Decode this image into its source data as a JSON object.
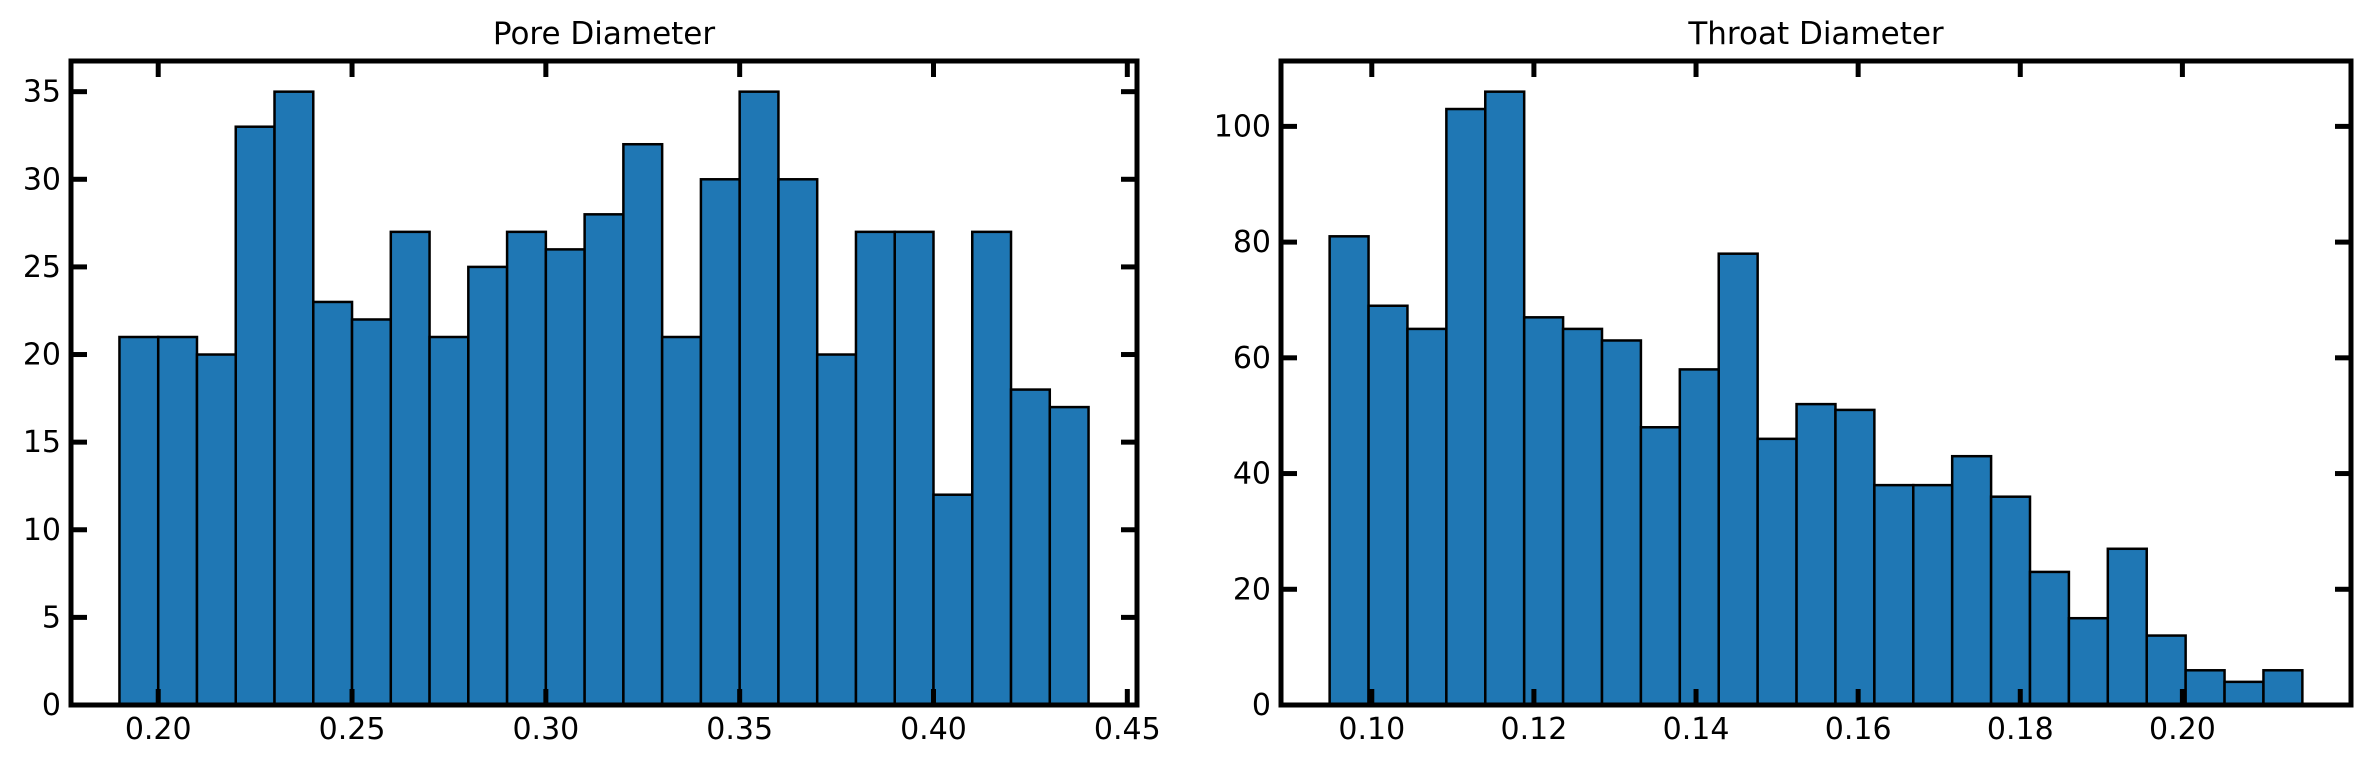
{
  "chart_data": [
    {
      "type": "bar",
      "title": "Pore Diameter",
      "xlabel": "",
      "ylabel": "",
      "bin_edges": [
        0.19,
        0.2,
        0.21,
        0.22,
        0.23,
        0.24,
        0.25,
        0.26,
        0.27,
        0.28,
        0.29,
        0.3,
        0.31,
        0.32,
        0.33,
        0.34,
        0.35,
        0.36,
        0.37,
        0.38,
        0.39,
        0.4,
        0.41,
        0.42,
        0.43,
        0.44
      ],
      "values": [
        21,
        21,
        20,
        33,
        35,
        23,
        22,
        27,
        21,
        25,
        27,
        26,
        28,
        32,
        21,
        30,
        35,
        30,
        20,
        27,
        27,
        12,
        27,
        18,
        17
      ],
      "xlim": [
        0.1775,
        0.4525
      ],
      "ylim": [
        0,
        36.75
      ],
      "xticks": [
        0.2,
        0.25,
        0.3,
        0.35,
        0.4,
        0.45
      ],
      "xtick_labels": [
        "0.20",
        "0.25",
        "0.30",
        "0.35",
        "0.40",
        "0.45"
      ],
      "yticks": [
        0,
        5,
        10,
        15,
        20,
        25,
        30,
        35
      ],
      "ytick_labels": [
        "0",
        "5",
        "10",
        "15",
        "20",
        "25",
        "30",
        "35"
      ],
      "grid": false,
      "color": "#1f77b4",
      "edge_color": "#000000"
    },
    {
      "type": "bar",
      "title": "Throat Diameter",
      "xlabel": "",
      "ylabel": "",
      "bin_edges": [
        0.0948,
        0.0996,
        0.1044,
        0.1092,
        0.114,
        0.1188,
        0.1236,
        0.1284,
        0.1332,
        0.138,
        0.1428,
        0.1476,
        0.1524,
        0.1572,
        0.162,
        0.1668,
        0.1716,
        0.1764,
        0.1812,
        0.186,
        0.1908,
        0.1956,
        0.2004,
        0.2052,
        0.21,
        0.2148
      ],
      "values": [
        81,
        69,
        65,
        103,
        106,
        67,
        65,
        63,
        48,
        58,
        78,
        46,
        52,
        51,
        38,
        38,
        43,
        36,
        23,
        15,
        27,
        12,
        6,
        4,
        6
      ],
      "xlim": [
        0.0888,
        0.2208
      ],
      "ylim": [
        0,
        111.3
      ],
      "xticks": [
        0.1,
        0.12,
        0.14,
        0.16,
        0.18,
        0.2
      ],
      "xtick_labels": [
        "0.10",
        "0.12",
        "0.14",
        "0.16",
        "0.18",
        "0.20"
      ],
      "yticks": [
        0,
        20,
        40,
        60,
        80,
        100
      ],
      "ytick_labels": [
        "0",
        "20",
        "40",
        "60",
        "80",
        "100"
      ],
      "grid": false,
      "color": "#1f77b4",
      "edge_color": "#000000"
    }
  ]
}
